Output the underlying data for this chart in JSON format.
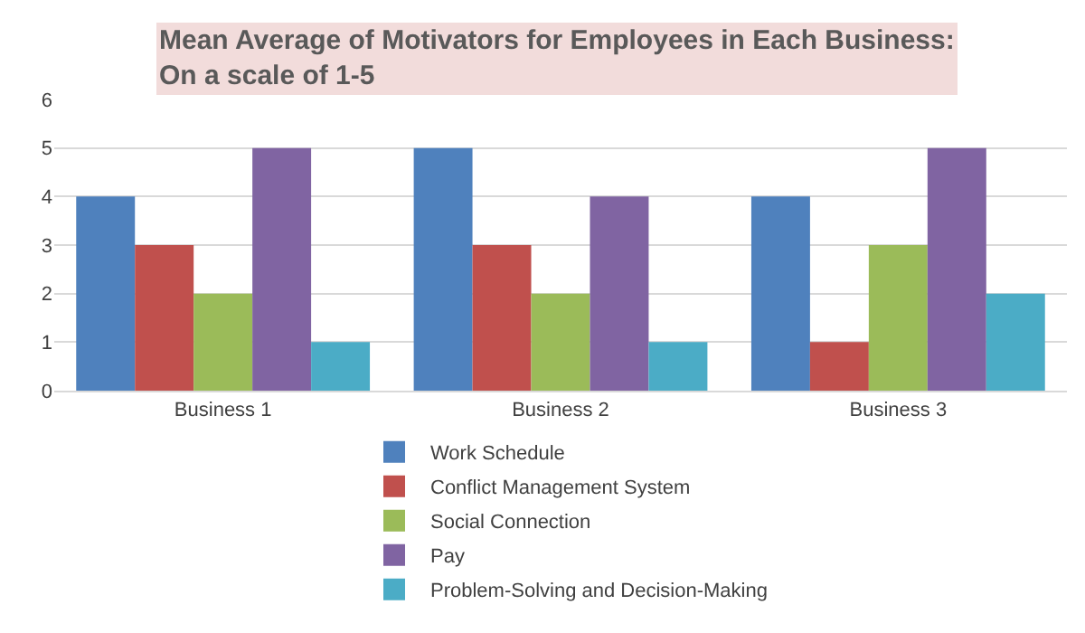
{
  "chart_data": {
    "type": "bar",
    "title": "Mean Average of Motivators for Employees in Each Business:\nOn a scale of 1-5",
    "categories": [
      "Business 1",
      "Business 2",
      "Business 3"
    ],
    "series": [
      {
        "name": "Work Schedule",
        "color": "#4f81bd",
        "values": [
          4,
          5,
          4
        ]
      },
      {
        "name": "Conflict Management System",
        "color": "#c0504d",
        "values": [
          3,
          3,
          1
        ]
      },
      {
        "name": "Social Connection",
        "color": "#9bbb59",
        "values": [
          2,
          2,
          3
        ]
      },
      {
        "name": "Pay",
        "color": "#8064a2",
        "values": [
          5,
          4,
          5
        ]
      },
      {
        "name": "Problem-Solving and Decision-Making",
        "color": "#4bacc6",
        "values": [
          1,
          1,
          2
        ]
      }
    ],
    "ylim": [
      0,
      6
    ],
    "yticks": [
      0,
      1,
      2,
      3,
      4,
      5,
      6
    ],
    "grid": "y",
    "legend": "bottom"
  }
}
